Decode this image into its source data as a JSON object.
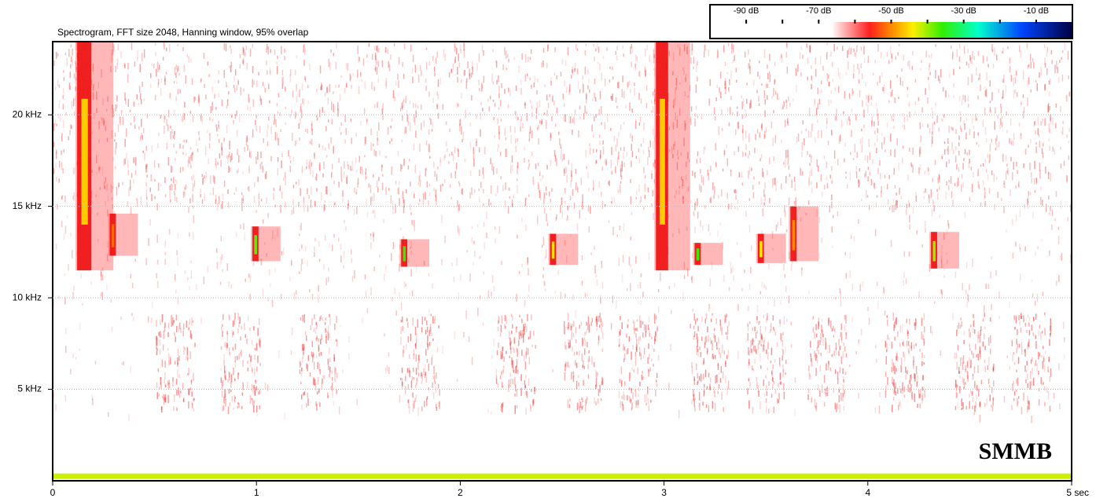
{
  "chart_data": {
    "type": "spectrogram",
    "title": "Spectrogram, FFT size 2048, Hanning window, 95% overlap",
    "watermark": "SMMB",
    "xlim": [
      0,
      5
    ],
    "xticks": [
      0,
      1,
      2,
      3,
      4,
      {
        "value": 5,
        "label": "5 sec"
      }
    ],
    "ylim": [
      0,
      24
    ],
    "yticks": [
      {
        "value": 5,
        "label": "5 kHz"
      },
      {
        "value": 10,
        "label": "10 kHz"
      },
      {
        "value": 15,
        "label": "15 kHz"
      },
      {
        "value": 20,
        "label": "20 kHz"
      }
    ],
    "grid": true,
    "colorbar": {
      "lim": [
        -100,
        0
      ],
      "ticks": [
        {
          "value": -90,
          "label": "-90 dB"
        },
        {
          "value": -70,
          "label": "-70 dB"
        },
        {
          "value": -50,
          "label": "-50 dB"
        },
        {
          "value": -30,
          "label": "-30 dB"
        },
        {
          "value": -10,
          "label": "-10 dB"
        }
      ],
      "minor_ticks": [
        -80,
        -60,
        -40,
        -20
      ],
      "colormap": [
        {
          "db": -66,
          "color": "#fff4f4"
        },
        {
          "db": -56,
          "color": "#ff2020"
        },
        {
          "db": -50,
          "color": "#ff8800"
        },
        {
          "db": -44,
          "color": "#ffee00"
        },
        {
          "db": -36,
          "color": "#33ee00"
        },
        {
          "db": -26,
          "color": "#00ffcc"
        },
        {
          "db": -14,
          "color": "#0044ff"
        },
        {
          "db": 0,
          "color": "#000040"
        }
      ]
    },
    "events": [
      {
        "t": [
          0.12,
          0.19
        ],
        "f": [
          11.5,
          24
        ],
        "db": -46
      },
      {
        "t": [
          2.96,
          3.02
        ],
        "f": [
          11.5,
          24
        ],
        "db": -46
      },
      {
        "t": [
          0.28,
          0.31
        ],
        "f": [
          12.3,
          14.6
        ],
        "db": -52
      },
      {
        "t": [
          0.98,
          1.01
        ],
        "f": [
          12.0,
          13.9
        ],
        "db": -38
      },
      {
        "t": [
          1.71,
          1.74
        ],
        "f": [
          11.7,
          13.2
        ],
        "db": -36
      },
      {
        "t": [
          2.44,
          2.47
        ],
        "f": [
          11.8,
          13.5
        ],
        "db": -45
      },
      {
        "t": [
          3.15,
          3.18
        ],
        "f": [
          11.8,
          13.0
        ],
        "db": -36
      },
      {
        "t": [
          3.46,
          3.49
        ],
        "f": [
          11.9,
          13.5
        ],
        "db": -44
      },
      {
        "t": [
          3.62,
          3.65
        ],
        "f": [
          12.0,
          15.0
        ],
        "db": -50
      },
      {
        "t": [
          4.31,
          4.34
        ],
        "f": [
          11.6,
          13.6
        ],
        "db": -40
      },
      {
        "t": [
          0,
          5
        ],
        "f": [
          0.1,
          0.4
        ],
        "db": -42
      }
    ],
    "bursts": [
      0.6,
      0.92,
      1.3,
      1.8,
      2.27,
      2.6,
      2.87,
      3.22,
      3.5,
      3.8,
      4.18,
      4.52,
      4.8
    ]
  }
}
